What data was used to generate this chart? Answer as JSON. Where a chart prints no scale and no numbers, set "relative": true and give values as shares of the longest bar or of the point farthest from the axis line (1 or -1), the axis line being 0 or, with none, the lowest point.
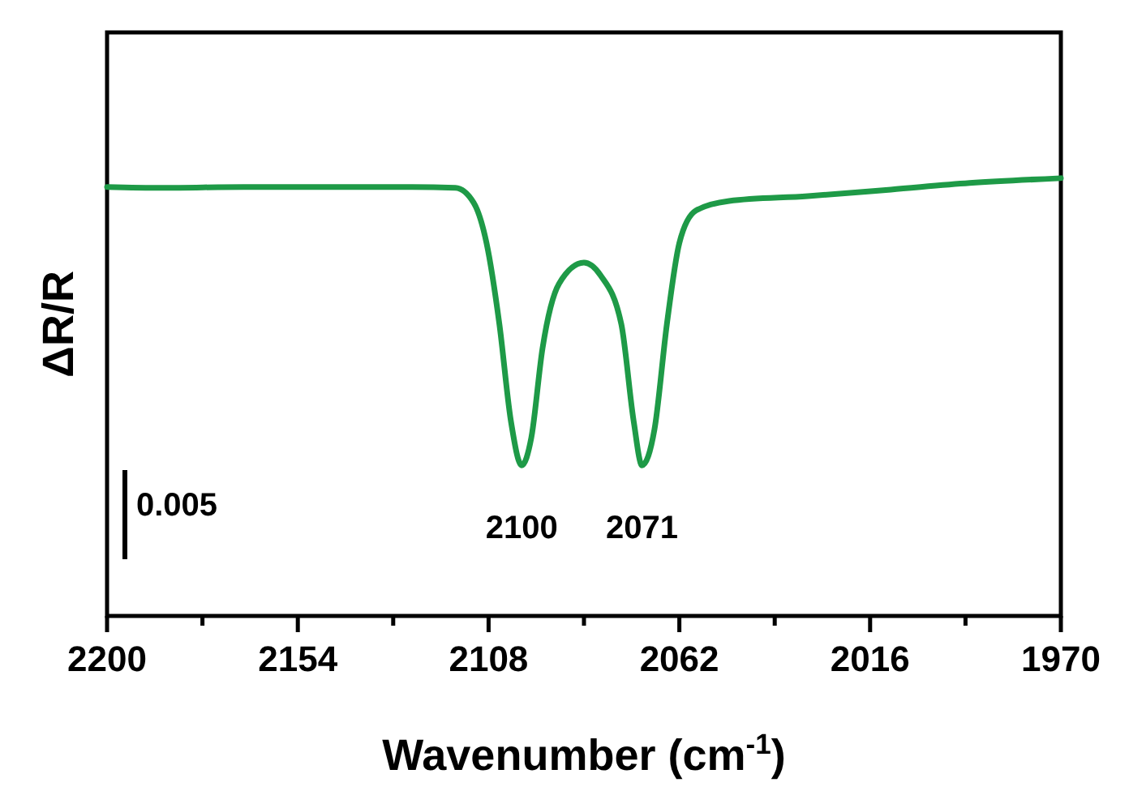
{
  "chart_data": {
    "type": "line",
    "relative": true,
    "xlabel": "Wavenumber (cm$^{-1}$)",
    "ylabel": "ΔR/R",
    "xlim": [
      2200,
      1970
    ],
    "xticks": [
      2200,
      {
        "value": 2177,
        "label": null
      },
      2154,
      {
        "value": 2131,
        "label": null
      },
      2108,
      {
        "value": 2085,
        "label": null
      },
      2062,
      {
        "value": 2039,
        "label": null
      },
      2016,
      {
        "value": 1993,
        "label": null
      },
      1970
    ],
    "tick_labels": "x",
    "grid": false,
    "marker": "none",
    "line_style": "solid",
    "series": [
      {
        "color": "#1e9a47",
        "x": [
          2200,
          2186.7,
          2167,
          2147.6,
          2128,
          2116,
          2111.6,
          2108.5,
          2105.4,
          2102.6,
          2100,
          2097.7,
          2095,
          2091,
          2085,
          2081,
          2076,
          2073,
          2071,
          2068,
          2065,
          2062,
          2058,
          2050,
          2031,
          2011,
          1992,
          1970
        ],
        "values": [
          0.98,
          0.978,
          0.98,
          0.98,
          0.98,
          0.978,
          0.944,
          0.852,
          0.667,
          0.444,
          0.344,
          0.407,
          0.611,
          0.759,
          0.807,
          0.778,
          0.667,
          0.444,
          0.344,
          0.426,
          0.667,
          0.852,
          0.926,
          0.948,
          0.959,
          0.974,
          0.989,
          1.0
        ]
      }
    ],
    "annotations": [
      {
        "text": "2100",
        "x": 2100,
        "y": 0.344
      },
      {
        "text": "2071",
        "x": 2071,
        "y": 0.344
      },
      "0.005"
    ]
  }
}
